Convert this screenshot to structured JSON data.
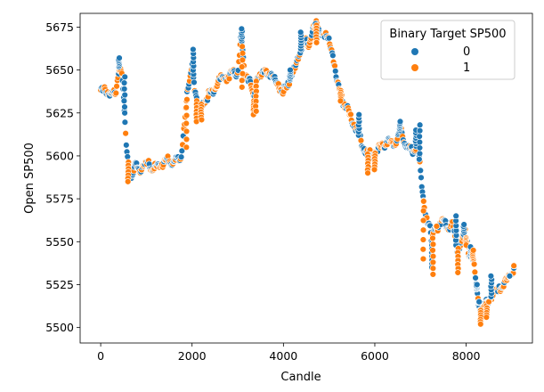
{
  "chart_data": {
    "type": "scatter",
    "title": "",
    "xlabel": "Candle",
    "ylabel": "Open SP500",
    "xlim": [
      -450,
      9450
    ],
    "ylim": [
      5491,
      5683
    ],
    "xticks": [
      0,
      2000,
      4000,
      6000,
      8000
    ],
    "yticks": [
      5500,
      5525,
      5550,
      5575,
      5600,
      5625,
      5650,
      5675
    ],
    "grid": false,
    "legend": {
      "title": "Binary Target SP500",
      "placement": "top-right"
    },
    "colors": {
      "0": "#1f77b4",
      "1": "#ff7f0e"
    },
    "series": [
      {
        "name": "0",
        "color": "#1f77b4"
      },
      {
        "name": "1",
        "color": "#ff7f0e"
      }
    ],
    "trace": [
      [
        0,
        5638
      ],
      [
        200,
        5637
      ],
      [
        330,
        5635
      ],
      [
        400,
        5652
      ],
      [
        460,
        5650
      ],
      [
        520,
        5625
      ],
      [
        560,
        5605
      ],
      [
        620,
        5592
      ],
      [
        700,
        5588
      ],
      [
        760,
        5595
      ],
      [
        850,
        5592
      ],
      [
        950,
        5594
      ],
      [
        1050,
        5596
      ],
      [
        1150,
        5592
      ],
      [
        1250,
        5594
      ],
      [
        1350,
        5596
      ],
      [
        1450,
        5597
      ],
      [
        1550,
        5596
      ],
      [
        1650,
        5598
      ],
      [
        1750,
        5597
      ],
      [
        1800,
        5610
      ],
      [
        1850,
        5625
      ],
      [
        1900,
        5638
      ],
      [
        1950,
        5642
      ],
      [
        2000,
        5655
      ],
      [
        2060,
        5640
      ],
      [
        2120,
        5628
      ],
      [
        2200,
        5630
      ],
      [
        2300,
        5632
      ],
      [
        2400,
        5636
      ],
      [
        2500,
        5640
      ],
      [
        2600,
        5644
      ],
      [
        2700,
        5647
      ],
      [
        2800,
        5645
      ],
      [
        2900,
        5650
      ],
      [
        3000,
        5648
      ],
      [
        3080,
        5670
      ],
      [
        3150,
        5648
      ],
      [
        3250,
        5645
      ],
      [
        3350,
        5632
      ],
      [
        3420,
        5648
      ],
      [
        3520,
        5646
      ],
      [
        3600,
        5650
      ],
      [
        3700,
        5648
      ],
      [
        3800,
        5644
      ],
      [
        3900,
        5642
      ],
      [
        3980,
        5635
      ],
      [
        4050,
        5640
      ],
      [
        4150,
        5645
      ],
      [
        4250,
        5650
      ],
      [
        4350,
        5660
      ],
      [
        4450,
        5668
      ],
      [
        4550,
        5664
      ],
      [
        4650,
        5674
      ],
      [
        4720,
        5676
      ],
      [
        4800,
        5672
      ],
      [
        4900,
        5670
      ],
      [
        5000,
        5668
      ],
      [
        5080,
        5660
      ],
      [
        5150,
        5645
      ],
      [
        5250,
        5638
      ],
      [
        5350,
        5628
      ],
      [
        5450,
        5625
      ],
      [
        5550,
        5618
      ],
      [
        5650,
        5612
      ],
      [
        5750,
        5605
      ],
      [
        5850,
        5601
      ],
      [
        5950,
        5600
      ],
      [
        6050,
        5603
      ],
      [
        6150,
        5606
      ],
      [
        6250,
        5608
      ],
      [
        6350,
        5607
      ],
      [
        6450,
        5607
      ],
      [
        6550,
        5615
      ],
      [
        6650,
        5608
      ],
      [
        6750,
        5605
      ],
      [
        6850,
        5601
      ],
      [
        6950,
        5610
      ],
      [
        7000,
        5590
      ],
      [
        7050,
        5575
      ],
      [
        7120,
        5565
      ],
      [
        7200,
        5560
      ],
      [
        7250,
        5548
      ],
      [
        7300,
        5558
      ],
      [
        7400,
        5560
      ],
      [
        7500,
        5562
      ],
      [
        7600,
        5558
      ],
      [
        7700,
        5560
      ],
      [
        7800,
        5545
      ],
      [
        7900,
        5550
      ],
      [
        7980,
        5555
      ],
      [
        8050,
        5545
      ],
      [
        8150,
        5540
      ],
      [
        8250,
        5518
      ],
      [
        8320,
        5510
      ],
      [
        8400,
        5512
      ],
      [
        8500,
        5516
      ],
      [
        8600,
        5520
      ],
      [
        8700,
        5522
      ],
      [
        8800,
        5525
      ],
      [
        8900,
        5528
      ],
      [
        9000,
        5532
      ],
      [
        9050,
        5536
      ]
    ],
    "spikes": [
      [
        400,
        5657,
        "0"
      ],
      [
        520,
        5646,
        "0"
      ],
      [
        600,
        5585,
        "1"
      ],
      [
        1880,
        5605,
        "1"
      ],
      [
        2030,
        5662,
        "0"
      ],
      [
        2100,
        5620,
        "1"
      ],
      [
        2200,
        5621,
        "1"
      ],
      [
        3090,
        5674,
        "0"
      ],
      [
        3100,
        5640,
        "1"
      ],
      [
        3350,
        5624,
        "1"
      ],
      [
        3400,
        5626,
        "1"
      ],
      [
        4150,
        5650,
        "0"
      ],
      [
        4380,
        5672,
        "0"
      ],
      [
        4700,
        5677,
        "0"
      ],
      [
        4720,
        5666,
        "1"
      ],
      [
        5250,
        5632,
        "1"
      ],
      [
        5650,
        5624,
        "0"
      ],
      [
        5850,
        5590,
        "1"
      ],
      [
        6000,
        5592,
        "1"
      ],
      [
        6550,
        5620,
        "0"
      ],
      [
        6900,
        5615,
        "0"
      ],
      [
        6980,
        5618,
        "0"
      ],
      [
        7060,
        5540,
        "1"
      ],
      [
        7250,
        5535,
        "0"
      ],
      [
        7270,
        5531,
        "1"
      ],
      [
        7350,
        5559,
        "1"
      ],
      [
        7780,
        5565,
        "0"
      ],
      [
        7820,
        5532,
        "1"
      ],
      [
        7950,
        5560,
        "0"
      ],
      [
        8000,
        5548,
        "1"
      ],
      [
        8100,
        5547,
        "0"
      ],
      [
        8150,
        5545,
        "1"
      ],
      [
        8230,
        5525,
        "0"
      ],
      [
        8280,
        5515,
        "0"
      ],
      [
        8320,
        5502,
        "1"
      ],
      [
        8450,
        5506,
        "1"
      ],
      [
        8500,
        5515,
        "1"
      ],
      [
        8550,
        5530,
        "0"
      ],
      [
        8950,
        5530,
        "0"
      ],
      [
        9050,
        5536,
        "1"
      ]
    ]
  }
}
